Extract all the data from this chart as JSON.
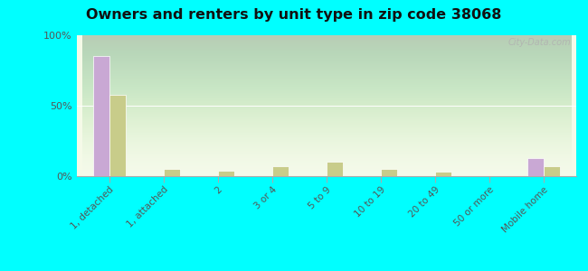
{
  "title": "Owners and renters by unit type in zip code 38068",
  "categories": [
    "1, detached",
    "1, attached",
    "2",
    "3 or 4",
    "5 to 9",
    "10 to 19",
    "20 to 49",
    "50 or more",
    "Mobile home"
  ],
  "owner_values": [
    85,
    0,
    0,
    0,
    0,
    0,
    0,
    0,
    13
  ],
  "renter_values": [
    58,
    5,
    4,
    7,
    10,
    5,
    3,
    0,
    7
  ],
  "owner_color": "#c9a8d4",
  "renter_color": "#c8cc8a",
  "figure_bg": "#00ffff",
  "plot_bg_top": "#d8eec8",
  "plot_bg_bottom": "#f0fae0",
  "ylim": [
    0,
    100
  ],
  "yticks": [
    0,
    50,
    100
  ],
  "ytick_labels": [
    "0%",
    "50%",
    "100%"
  ],
  "bar_width": 0.3,
  "watermark": "City-Data.com"
}
